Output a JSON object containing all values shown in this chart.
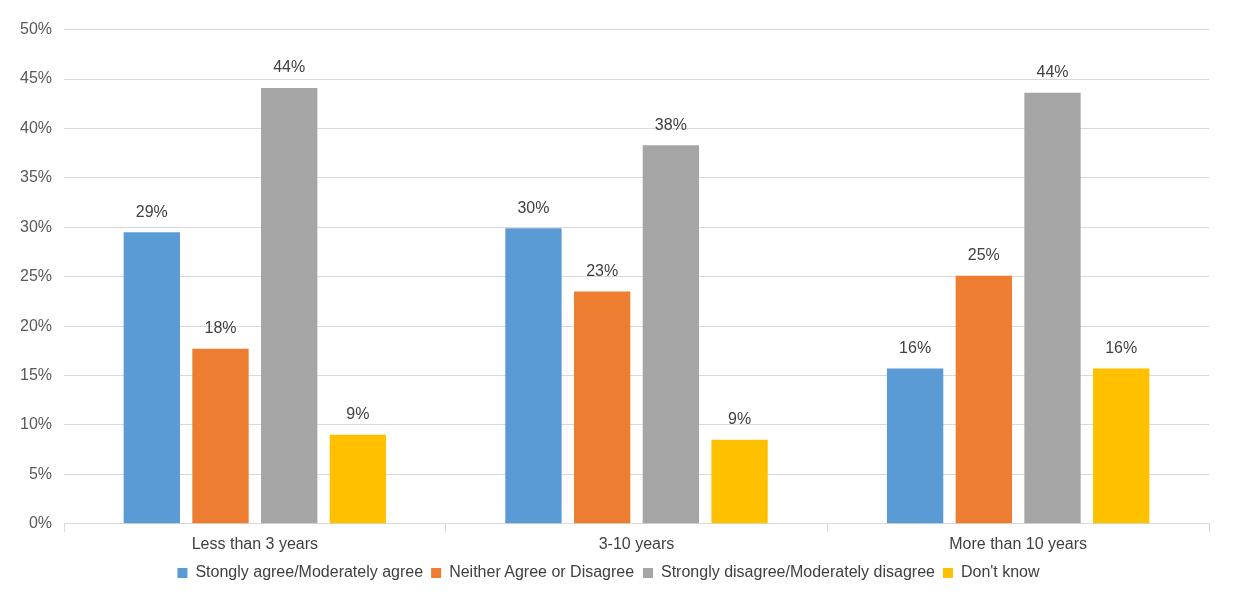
{
  "chart_data": {
    "type": "bar",
    "categories": [
      "Less than 3 years",
      "3-10 years",
      "More than 10 years"
    ],
    "series": [
      {
        "name": "Stongly agree/Moderately agree",
        "color": "#5b9bd5",
        "values": [
          29.5,
          29.9,
          15.7
        ],
        "value_labels": [
          "29%",
          "30%",
          "16%"
        ]
      },
      {
        "name": "Neither Agree or Disagree",
        "color": "#ed7d31",
        "values": [
          17.7,
          23.5,
          25.1
        ],
        "value_labels": [
          "18%",
          "23%",
          "25%"
        ]
      },
      {
        "name": "Strongly disagree/Moderately disagree",
        "color": "#a5a5a5",
        "values": [
          44.1,
          38.3,
          43.6
        ],
        "value_labels": [
          "44%",
          "38%",
          "44%"
        ]
      },
      {
        "name": "Don't know",
        "color": "#ffc000",
        "values": [
          9,
          8.5,
          15.7
        ],
        "value_labels": [
          "9%",
          "9%",
          "16%"
        ]
      }
    ],
    "ylim": [
      0,
      50
    ],
    "yticks": [
      {
        "value": 0,
        "label": "0%"
      },
      {
        "value": 5,
        "label": "5%"
      },
      {
        "value": 10,
        "label": "10%"
      },
      {
        "value": 15,
        "label": "15%"
      },
      {
        "value": 20,
        "label": "20%"
      },
      {
        "value": 25,
        "label": "25%"
      },
      {
        "value": 30,
        "label": "30%"
      },
      {
        "value": 35,
        "label": "35%"
      },
      {
        "value": 40,
        "label": "40%"
      },
      {
        "value": 45,
        "label": "45%"
      },
      {
        "value": 50,
        "label": "50%"
      }
    ],
    "grid": "y",
    "legend": "bottom"
  }
}
